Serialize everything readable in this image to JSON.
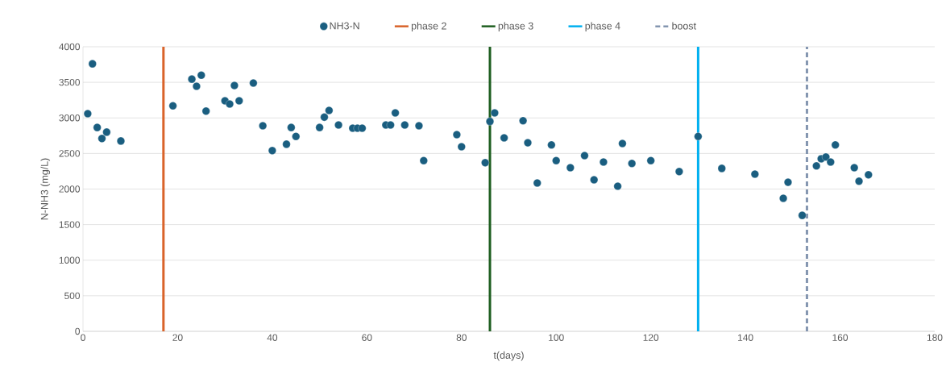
{
  "chart_data": {
    "type": "scatter",
    "xlabel": "t(days)",
    "ylabel": "N-NH3 (mg/L)",
    "xlim": [
      0,
      180
    ],
    "xticks": [
      0,
      20,
      40,
      60,
      80,
      100,
      120,
      140,
      160,
      180
    ],
    "ylim": [
      0,
      4000
    ],
    "yticks": [
      0,
      500,
      1000,
      1500,
      2000,
      2500,
      3000,
      3500,
      4000
    ],
    "grid": "y",
    "legend": "top",
    "marker": "circle",
    "series": [
      {
        "name": "NH3-N",
        "color": "#1a5e80",
        "x": [
          1,
          2,
          3,
          4,
          5,
          8,
          19,
          23,
          24,
          25,
          26,
          30,
          31,
          32,
          33,
          36,
          38,
          40,
          43,
          44,
          45,
          50,
          51,
          52,
          54,
          57,
          58,
          59,
          64,
          65,
          66,
          68,
          71,
          72,
          79,
          80,
          85,
          86,
          87,
          89,
          93,
          94,
          96,
          99,
          100,
          103,
          106,
          108,
          110,
          113,
          114,
          116,
          120,
          126,
          130,
          135,
          142,
          148,
          149,
          152,
          155,
          156,
          157,
          158,
          159,
          163,
          164,
          166
        ],
        "values": [
          3060,
          3760,
          2865,
          2710,
          2800,
          2675,
          3170,
          3545,
          3445,
          3600,
          3095,
          3240,
          3195,
          3455,
          3240,
          3490,
          2890,
          2540,
          2630,
          2865,
          2740,
          2865,
          3010,
          3105,
          2900,
          2855,
          2855,
          2855,
          2900,
          2900,
          3070,
          2900,
          2890,
          2400,
          2765,
          2595,
          2370,
          2950,
          3070,
          2720,
          2960,
          2650,
          2085,
          2620,
          2400,
          2300,
          2470,
          2130,
          2380,
          2040,
          2640,
          2360,
          2400,
          2245,
          2740,
          2290,
          2210,
          1870,
          2095,
          1630,
          2325,
          2425,
          2450,
          2380,
          2620,
          2300,
          2110,
          2200
        ]
      }
    ],
    "ref_lines": [
      {
        "axis": "x",
        "value": 17,
        "label": "phase 2",
        "color": "#d9632a",
        "line_style": "solid"
      },
      {
        "axis": "x",
        "value": 86,
        "label": "phase 3",
        "color": "#1e5e20",
        "line_style": "solid"
      },
      {
        "axis": "x",
        "value": 130,
        "label": "phase 4",
        "color": "#00b0f0",
        "line_style": "solid"
      },
      {
        "axis": "x",
        "value": 153,
        "label": "boost",
        "color": "#8496b0",
        "line_style": "dashed"
      }
    ]
  }
}
